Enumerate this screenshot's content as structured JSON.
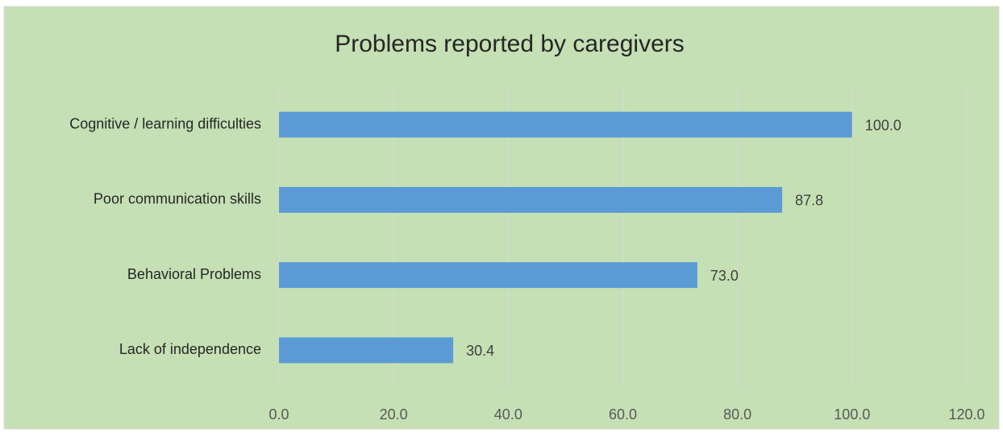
{
  "chart_data": {
    "type": "bar",
    "orientation": "horizontal",
    "title": "Problems reported by caregivers",
    "categories": [
      "Cognitive / learning difficulties",
      "Poor communication skills",
      "Behavioral Problems",
      "Lack of independence"
    ],
    "values": [
      100.0,
      87.8,
      73.0,
      30.4
    ],
    "value_labels": [
      "100.0",
      "87.8",
      "73.0",
      "30.4"
    ],
    "color": "#5b9bd5",
    "xlim": [
      0,
      120
    ],
    "xticks": [
      {
        "value": 0,
        "label": "0.0"
      },
      {
        "value": 20,
        "label": "20.0"
      },
      {
        "value": 40,
        "label": "40.0"
      },
      {
        "value": 60,
        "label": "60.0"
      },
      {
        "value": 80,
        "label": "80.0"
      },
      {
        "value": 100,
        "label": "100.0"
      },
      {
        "value": 120,
        "label": "120.0"
      }
    ],
    "grid": true
  }
}
